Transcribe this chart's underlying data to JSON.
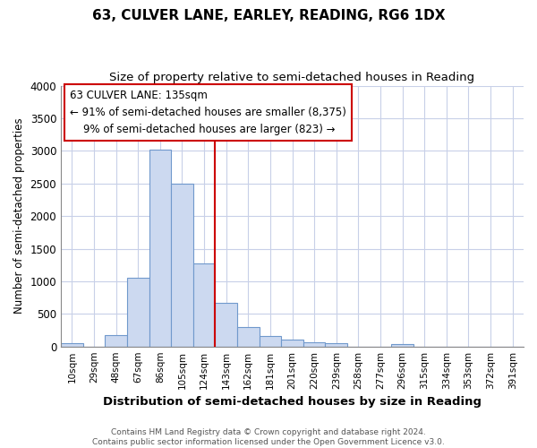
{
  "title": "63, CULVER LANE, EARLEY, READING, RG6 1DX",
  "subtitle": "Size of property relative to semi-detached houses in Reading",
  "xlabel": "Distribution of semi-detached houses by size in Reading",
  "ylabel": "Number of semi-detached properties",
  "categories": [
    "10sqm",
    "29sqm",
    "48sqm",
    "67sqm",
    "86sqm",
    "105sqm",
    "124sqm",
    "143sqm",
    "162sqm",
    "181sqm",
    "201sqm",
    "220sqm",
    "239sqm",
    "258sqm",
    "277sqm",
    "296sqm",
    "315sqm",
    "334sqm",
    "353sqm",
    "372sqm",
    "391sqm"
  ],
  "values": [
    50,
    0,
    175,
    1050,
    3025,
    2500,
    1275,
    670,
    300,
    160,
    100,
    70,
    50,
    0,
    0,
    40,
    0,
    0,
    0,
    0,
    0
  ],
  "bar_color": "#ccd9f0",
  "bar_edge_color": "#7099cc",
  "pct_smaller": 91,
  "n_smaller": 8375,
  "pct_larger": 9,
  "n_larger": 823,
  "property_sqm": 135,
  "property_line_index": 7,
  "ylim": [
    0,
    4000
  ],
  "yticks": [
    0,
    500,
    1000,
    1500,
    2000,
    2500,
    3000,
    3500,
    4000
  ],
  "annotation_box_facecolor": "#ffffff",
  "annotation_box_edgecolor": "#cc0000",
  "line_color": "#cc0000",
  "footer1": "Contains HM Land Registry data © Crown copyright and database right 2024.",
  "footer2": "Contains public sector information licensed under the Open Government Licence v3.0.",
  "bg_color": "#ffffff"
}
